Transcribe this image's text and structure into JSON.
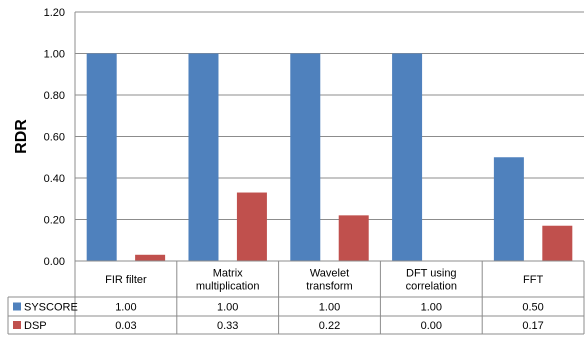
{
  "chart_data": {
    "type": "bar",
    "ylabel": "RDR",
    "ylim": [
      0,
      1.2
    ],
    "yticks": [
      "0.00",
      "0.20",
      "0.40",
      "0.60",
      "0.80",
      "1.00",
      "1.20"
    ],
    "categories": [
      [
        "FIR filter"
      ],
      [
        "Matrix",
        "multiplication"
      ],
      [
        "Wavelet",
        "transform"
      ],
      [
        "DFT using",
        "correlation"
      ],
      [
        "FFT"
      ]
    ],
    "series": [
      {
        "name": "SYSCORE",
        "color": "#4F81BD",
        "values": [
          1.0,
          1.0,
          1.0,
          1.0,
          0.5
        ],
        "labels": [
          "1.00",
          "1.00",
          "1.00",
          "1.00",
          "0.50"
        ]
      },
      {
        "name": "DSP",
        "color": "#C0504D",
        "values": [
          0.03,
          0.33,
          0.22,
          0.0,
          0.17
        ],
        "labels": [
          "0.03",
          "0.33",
          "0.22",
          "0.00",
          "0.17"
        ]
      }
    ],
    "grid": "horizontal",
    "legend": "data-table"
  }
}
